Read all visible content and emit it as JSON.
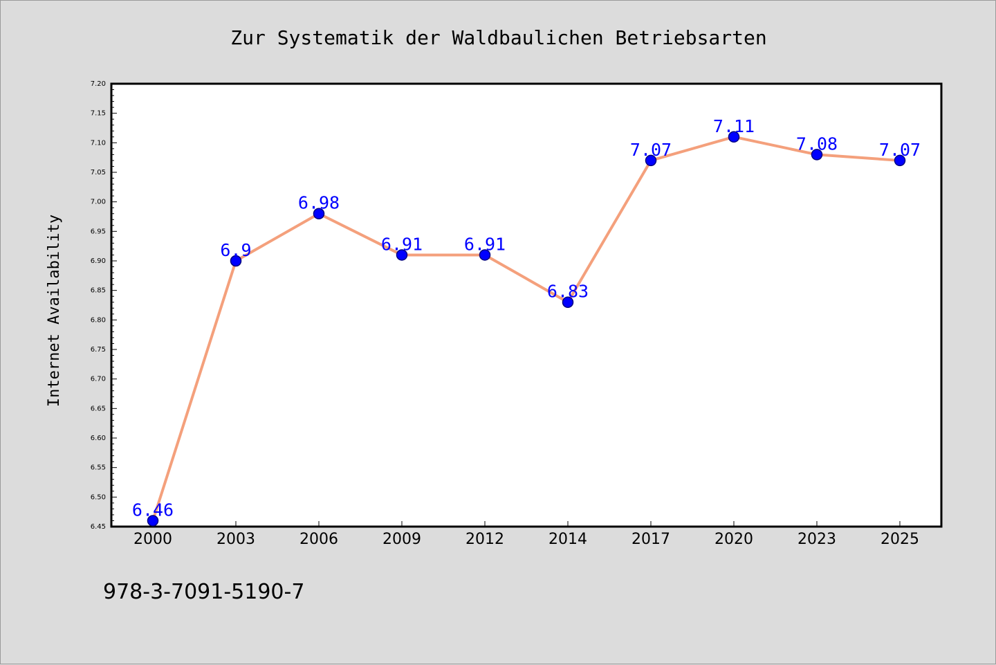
{
  "chart_data": {
    "type": "line",
    "title": "Zur Systematik der Waldbaulichen Betriebsarten",
    "xlabel": "",
    "ylabel": "Internet Availability",
    "categories": [
      "2000",
      "2003",
      "2006",
      "2009",
      "2012",
      "2014",
      "2017",
      "2020",
      "2023",
      "2025"
    ],
    "series": [
      {
        "values": [
          6.46,
          6.9,
          6.98,
          6.91,
          6.91,
          6.83,
          7.07,
          7.11,
          7.08,
          7.07
        ],
        "data_labels": [
          "6.46",
          "6.9",
          "6.98",
          "6.91",
          "6.91",
          "6.83",
          "7.07",
          "7.11",
          "7.08",
          "7.07"
        ]
      }
    ],
    "ylim": [
      6.45,
      7.2
    ],
    "yticks": [
      "6.45",
      "6.50",
      "6.55",
      "6.60",
      "6.65",
      "6.70",
      "6.75",
      "6.80",
      "6.85",
      "6.90",
      "6.95",
      "7.00",
      "7.05",
      "7.10",
      "7.15",
      "7.20"
    ],
    "grid": false,
    "legend": "none",
    "colors": {
      "line": "#f4a07c",
      "marker_fill": "#0000ff",
      "marker_edge": "#000080",
      "data_label": "#0000ff",
      "plot_background": "#ffffff",
      "figure_background": "#dcdcdc"
    }
  },
  "footer": {
    "isbn": "978-3-7091-5190-7"
  }
}
